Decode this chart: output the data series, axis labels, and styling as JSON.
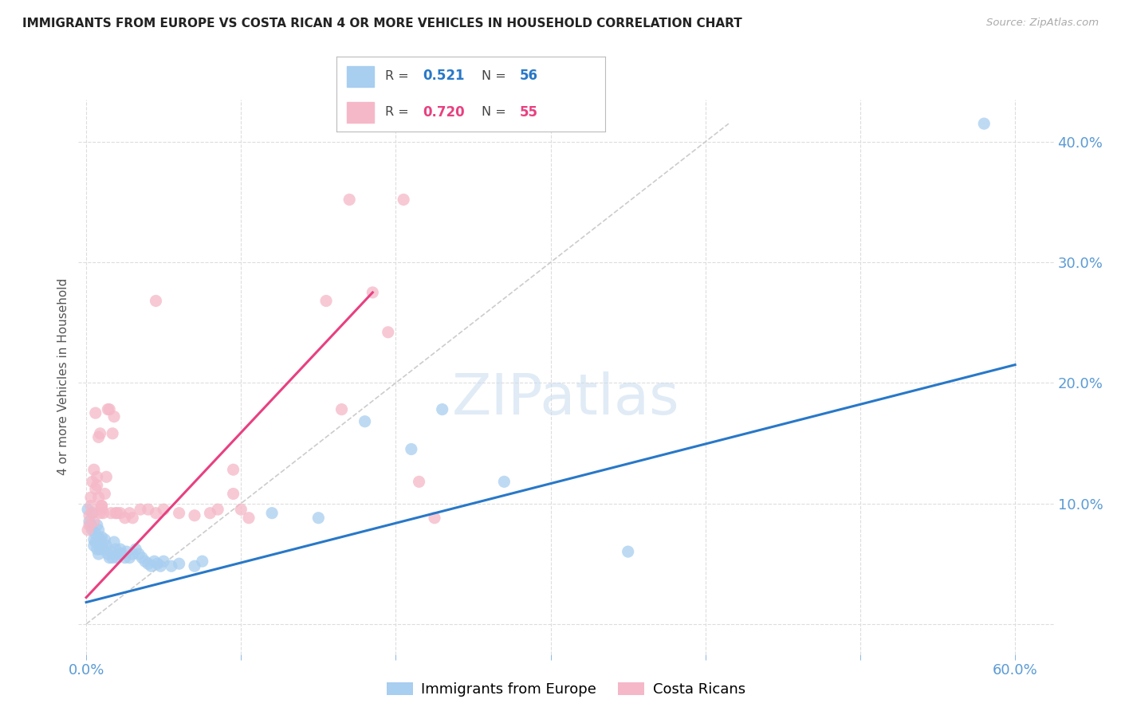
{
  "title": "IMMIGRANTS FROM EUROPE VS COSTA RICAN 4 OR MORE VEHICLES IN HOUSEHOLD CORRELATION CHART",
  "source": "Source: ZipAtlas.com",
  "ylabel": "4 or more Vehicles in Household",
  "legend_blue_R": "0.521",
  "legend_blue_N": "56",
  "legend_pink_R": "0.720",
  "legend_pink_N": "55",
  "legend_blue_label": "Immigrants from Europe",
  "legend_pink_label": "Costa Ricans",
  "xlim": [
    -0.005,
    0.625
  ],
  "ylim": [
    -0.025,
    0.435
  ],
  "xticks": [
    0.0,
    0.1,
    0.2,
    0.3,
    0.4,
    0.5,
    0.6
  ],
  "yticks": [
    0.0,
    0.1,
    0.2,
    0.3,
    0.4
  ],
  "blue_scatter_color": "#A8CEF0",
  "pink_scatter_color": "#F5B8C8",
  "blue_line_color": "#2878C8",
  "pink_line_color": "#E84080",
  "diag_line_color": "#CCCCCC",
  "blue_scatter": [
    [
      0.001,
      0.095
    ],
    [
      0.002,
      0.085
    ],
    [
      0.003,
      0.082
    ],
    [
      0.004,
      0.078
    ],
    [
      0.004,
      0.092
    ],
    [
      0.005,
      0.07
    ],
    [
      0.005,
      0.065
    ],
    [
      0.006,
      0.075
    ],
    [
      0.006,
      0.068
    ],
    [
      0.007,
      0.082
    ],
    [
      0.007,
      0.062
    ],
    [
      0.008,
      0.078
    ],
    [
      0.008,
      0.058
    ],
    [
      0.009,
      0.07
    ],
    [
      0.009,
      0.062
    ],
    [
      0.01,
      0.065
    ],
    [
      0.01,
      0.072
    ],
    [
      0.011,
      0.063
    ],
    [
      0.012,
      0.07
    ],
    [
      0.013,
      0.065
    ],
    [
      0.014,
      0.058
    ],
    [
      0.015,
      0.055
    ],
    [
      0.016,
      0.06
    ],
    [
      0.017,
      0.055
    ],
    [
      0.018,
      0.068
    ],
    [
      0.019,
      0.062
    ],
    [
      0.02,
      0.055
    ],
    [
      0.021,
      0.058
    ],
    [
      0.022,
      0.062
    ],
    [
      0.023,
      0.058
    ],
    [
      0.025,
      0.055
    ],
    [
      0.026,
      0.06
    ],
    [
      0.028,
      0.055
    ],
    [
      0.03,
      0.058
    ],
    [
      0.032,
      0.062
    ],
    [
      0.034,
      0.058
    ],
    [
      0.036,
      0.055
    ],
    [
      0.038,
      0.052
    ],
    [
      0.04,
      0.05
    ],
    [
      0.042,
      0.048
    ],
    [
      0.044,
      0.052
    ],
    [
      0.046,
      0.05
    ],
    [
      0.048,
      0.048
    ],
    [
      0.05,
      0.052
    ],
    [
      0.055,
      0.048
    ],
    [
      0.06,
      0.05
    ],
    [
      0.07,
      0.048
    ],
    [
      0.075,
      0.052
    ],
    [
      0.12,
      0.092
    ],
    [
      0.15,
      0.088
    ],
    [
      0.18,
      0.168
    ],
    [
      0.21,
      0.145
    ],
    [
      0.23,
      0.178
    ],
    [
      0.27,
      0.118
    ],
    [
      0.35,
      0.06
    ],
    [
      0.58,
      0.415
    ]
  ],
  "pink_scatter": [
    [
      0.001,
      0.078
    ],
    [
      0.002,
      0.082
    ],
    [
      0.002,
      0.09
    ],
    [
      0.003,
      0.098
    ],
    [
      0.003,
      0.105
    ],
    [
      0.004,
      0.092
    ],
    [
      0.004,
      0.118
    ],
    [
      0.005,
      0.085
    ],
    [
      0.005,
      0.128
    ],
    [
      0.006,
      0.112
    ],
    [
      0.006,
      0.175
    ],
    [
      0.007,
      0.122
    ],
    [
      0.007,
      0.115
    ],
    [
      0.008,
      0.155
    ],
    [
      0.008,
      0.105
    ],
    [
      0.009,
      0.158
    ],
    [
      0.009,
      0.092
    ],
    [
      0.01,
      0.098
    ],
    [
      0.01,
      0.095
    ],
    [
      0.011,
      0.092
    ],
    [
      0.012,
      0.108
    ],
    [
      0.013,
      0.122
    ],
    [
      0.014,
      0.178
    ],
    [
      0.015,
      0.178
    ],
    [
      0.016,
      0.092
    ],
    [
      0.017,
      0.158
    ],
    [
      0.018,
      0.172
    ],
    [
      0.019,
      0.092
    ],
    [
      0.02,
      0.092
    ],
    [
      0.022,
      0.092
    ],
    [
      0.025,
      0.088
    ],
    [
      0.028,
      0.092
    ],
    [
      0.03,
      0.088
    ],
    [
      0.035,
      0.095
    ],
    [
      0.04,
      0.095
    ],
    [
      0.045,
      0.092
    ],
    [
      0.05,
      0.095
    ],
    [
      0.06,
      0.092
    ],
    [
      0.07,
      0.09
    ],
    [
      0.08,
      0.092
    ],
    [
      0.085,
      0.095
    ],
    [
      0.1,
      0.095
    ],
    [
      0.01,
      0.098
    ],
    [
      0.045,
      0.268
    ],
    [
      0.095,
      0.128
    ],
    [
      0.155,
      0.268
    ],
    [
      0.165,
      0.178
    ],
    [
      0.17,
      0.352
    ],
    [
      0.185,
      0.275
    ],
    [
      0.195,
      0.242
    ],
    [
      0.205,
      0.352
    ],
    [
      0.215,
      0.118
    ],
    [
      0.225,
      0.088
    ],
    [
      0.095,
      0.108
    ],
    [
      0.105,
      0.088
    ]
  ],
  "blue_line": [
    [
      0.0,
      0.018
    ],
    [
      0.6,
      0.215
    ]
  ],
  "pink_line": [
    [
      0.0,
      0.022
    ],
    [
      0.185,
      0.275
    ]
  ],
  "diag_line": [
    [
      0.0,
      0.0
    ],
    [
      0.415,
      0.415
    ]
  ],
  "background_color": "#FFFFFF",
  "grid_color": "#DDDDDD",
  "tick_color": "#5B9BD5",
  "axis_label_color": "#555555",
  "watermark_color": "#C8DCF0"
}
